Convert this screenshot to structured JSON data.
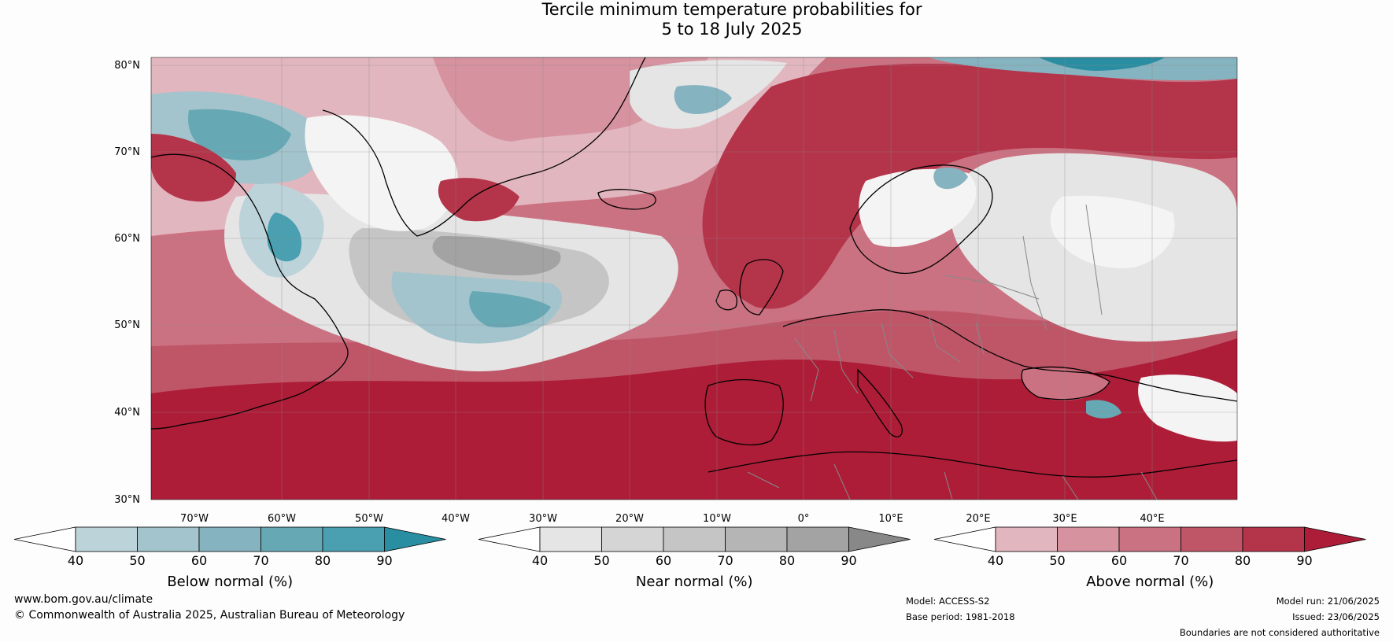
{
  "title": {
    "line1": "Tercile minimum temperature probabilities for",
    "line2": "5 to 18 July 2025"
  },
  "map": {
    "lat_labels": [
      "80°N",
      "70°N",
      "60°N",
      "50°N",
      "40°N",
      "30°N"
    ],
    "lon_labels": [
      "70°W",
      "60°W",
      "50°W",
      "40°W",
      "30°W",
      "20°W",
      "10°W",
      "0°",
      "10°E",
      "20°E",
      "30°E",
      "40°E"
    ]
  },
  "colorbars": [
    {
      "title": "Below normal (%)",
      "ticks": [
        "40",
        "50",
        "60",
        "70",
        "80",
        "90"
      ],
      "colors": [
        "#bcd3da",
        "#a3c4cc",
        "#86b3c0",
        "#67a8b5",
        "#4a9fb0",
        "#2a8ea3"
      ]
    },
    {
      "title": "Near normal (%)",
      "ticks": [
        "40",
        "50",
        "60",
        "70",
        "80",
        "90"
      ],
      "colors": [
        "#e5e5e5",
        "#d5d5d5",
        "#c5c5c5",
        "#b5b5b5",
        "#a3a3a3",
        "#888888"
      ]
    },
    {
      "title": "Above normal (%)",
      "ticks": [
        "40",
        "50",
        "60",
        "70",
        "80",
        "90"
      ],
      "colors": [
        "#e2b6bf",
        "#d6939f",
        "#cb7282",
        "#bf5668",
        "#b4344a",
        "#ad1d38"
      ]
    }
  ],
  "footer": {
    "website": "www.bom.gov.au/climate",
    "copyright": "© Commonwealth of Australia 2025, Australian Bureau of Meteorology",
    "model": "Model: ACCESS-S2",
    "base_period": "Base period: 1981-2018",
    "model_run": "Model run: 21/06/2025",
    "issued": "Issued: 23/06/2025",
    "disclaimer": "Boundaries are not considered authoritative"
  }
}
